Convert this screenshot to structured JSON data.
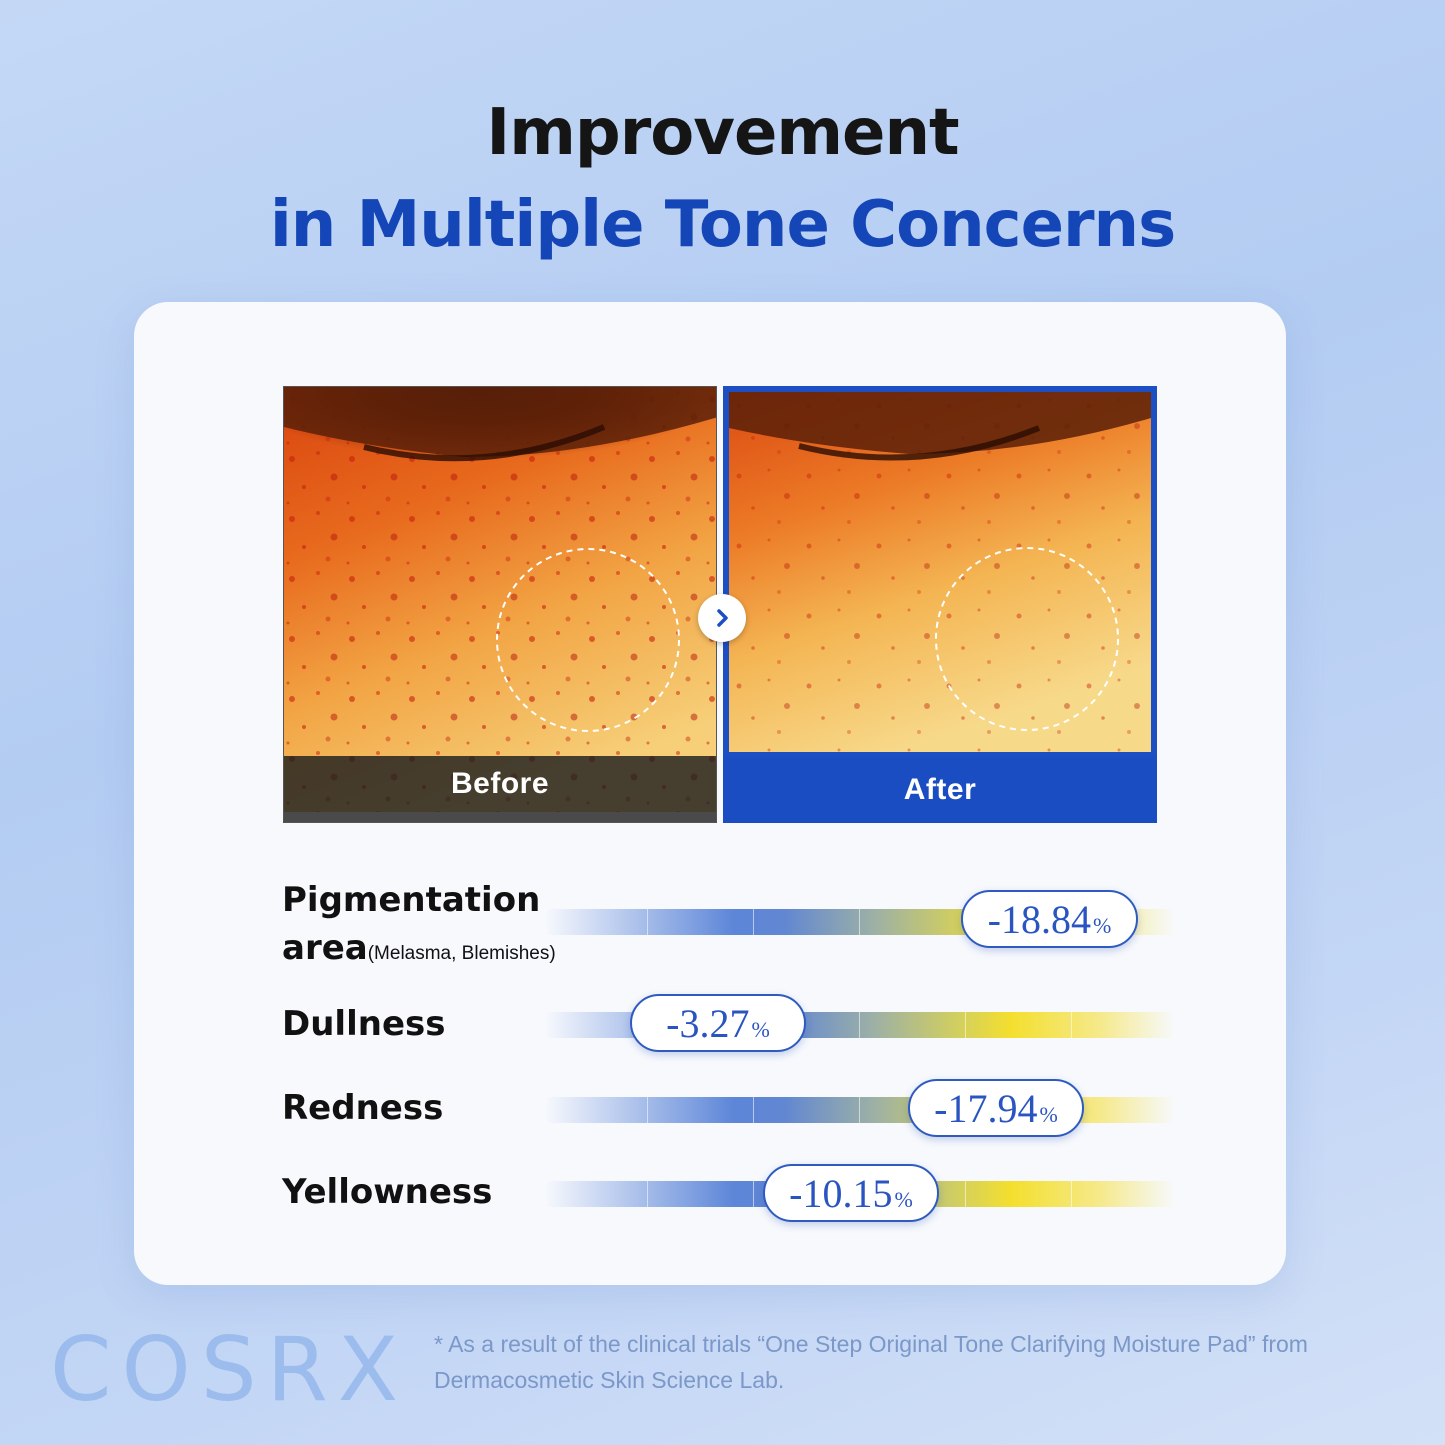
{
  "headline": {
    "line1": "Improvement",
    "line2": "in Multiple Tone Concerns"
  },
  "comparison": {
    "before_label": "Before",
    "after_label": "After",
    "arrow_icon": "chevron-right-icon"
  },
  "metrics": [
    {
      "label": "Pigmentation",
      "label_line2": "area",
      "sublabel": "(Melasma, Blemishes)",
      "value": "-18.84",
      "unit": "%"
    },
    {
      "label": "Dullness",
      "value": "-3.27",
      "unit": "%"
    },
    {
      "label": "Redness",
      "value": "-17.94",
      "unit": "%"
    },
    {
      "label": "Yellowness",
      "value": "-10.15",
      "unit": "%"
    }
  ],
  "brand": "COSRX",
  "footnote": "* As a result of the clinical trials “One Step Original Tone Clarifying Moisture Pad” from Dermacosmetic Skin Science Lab.",
  "colors": {
    "accent_blue": "#1546b8",
    "pill_text": "#2a55c0",
    "brand": "#9bbcec"
  }
}
